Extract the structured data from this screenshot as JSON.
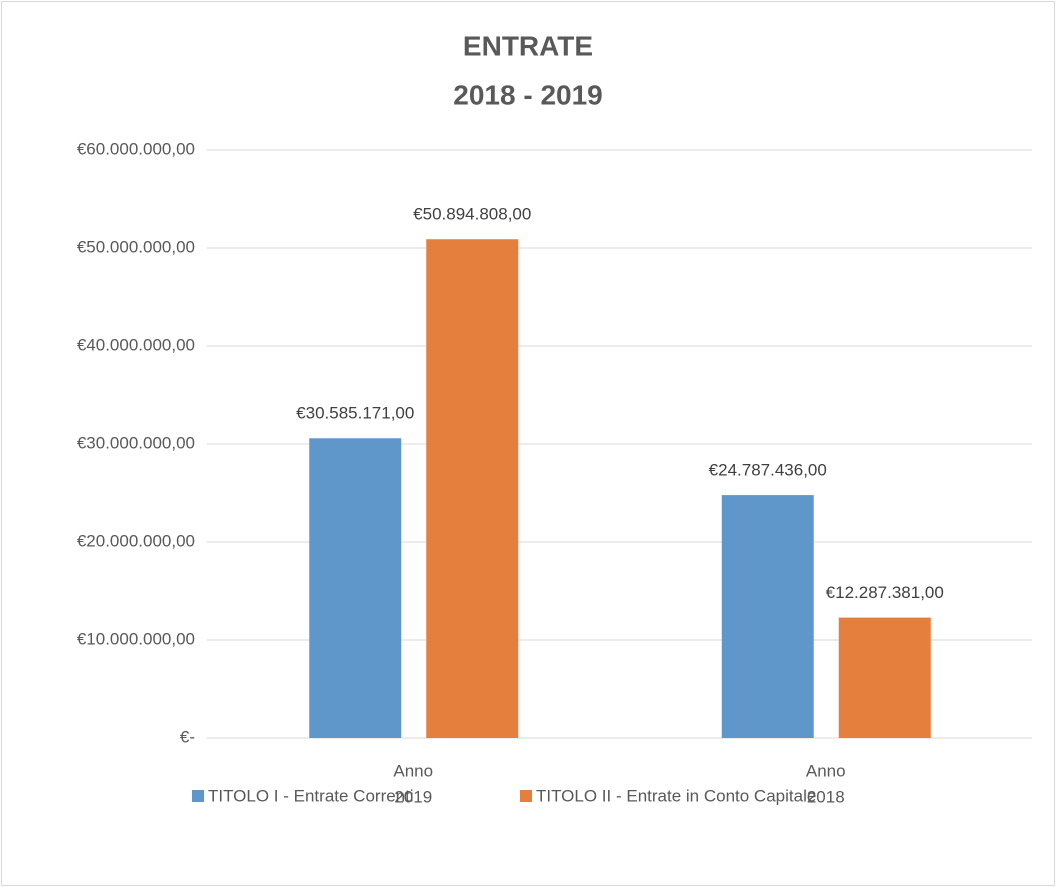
{
  "chart_data": {
    "type": "bar",
    "title": [
      "ENTRATE",
      "2018 - 2019"
    ],
    "categories": [
      [
        "Anno",
        "2019"
      ],
      [
        "Anno",
        "2018"
      ]
    ],
    "series": [
      {
        "name": "TITOLO I - Entrate Correnti",
        "color": "#6097cb",
        "values": [
          30585171,
          24787436
        ],
        "value_labels": [
          "€30.585.171,00",
          "€24.787.436,00"
        ]
      },
      {
        "name": "TITOLO II - Entrate in Conto Capitale",
        "color": "#e57f3e",
        "values": [
          50894808,
          12287381
        ],
        "value_labels": [
          "€50.894.808,00",
          "€12.287.381,00"
        ]
      }
    ],
    "ylim": [
      0,
      60000000
    ],
    "yticks": [
      {
        "value": 0,
        "label": "€-"
      },
      {
        "value": 10000000,
        "label": "€10.000.000,00"
      },
      {
        "value": 20000000,
        "label": "€20.000.000,00"
      },
      {
        "value": 30000000,
        "label": "€30.000.000,00"
      },
      {
        "value": 40000000,
        "label": "€40.000.000,00"
      },
      {
        "value": 50000000,
        "label": "€50.000.000,00"
      },
      {
        "value": 60000000,
        "label": "€60.000.000,00"
      }
    ],
    "grid": true
  }
}
